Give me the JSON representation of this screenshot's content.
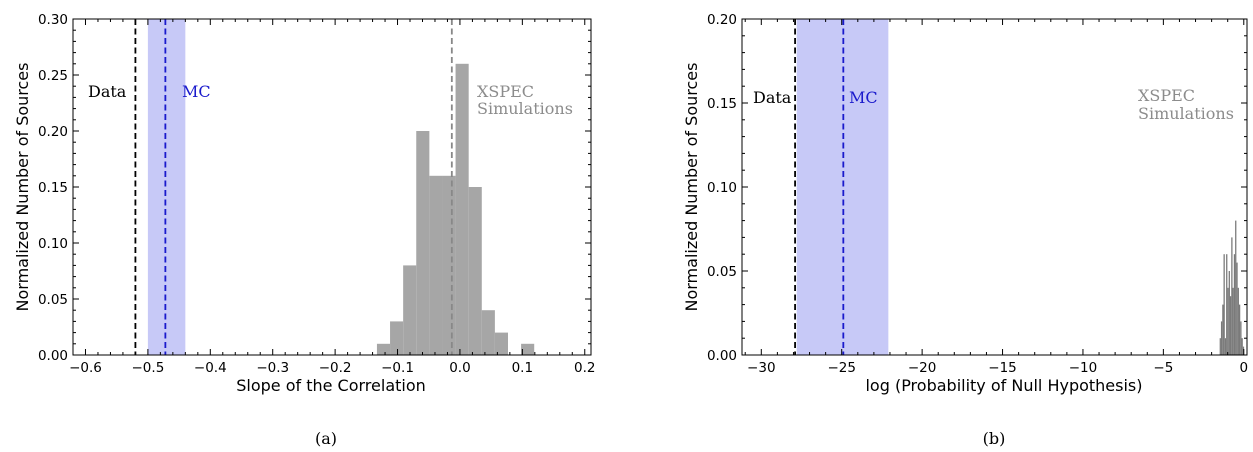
{
  "chart_data": [
    {
      "type": "bar",
      "xlabel": "Slope of the Correlation",
      "ylabel": "Normalized Number of Sources",
      "caption": "(a)",
      "xlim": [
        -0.62,
        0.21
      ],
      "ylim": [
        0,
        0.3
      ],
      "xticks": [
        -0.6,
        -0.5,
        -0.4,
        -0.3,
        -0.2,
        -0.1,
        0.0,
        0.1,
        0.2
      ],
      "xtick_labels": [
        "−0.6",
        "−0.5",
        "−0.4",
        "−0.3",
        "−0.2",
        "−0.1",
        "0.0",
        "0.1",
        "0.2"
      ],
      "yticks": [
        0.0,
        0.05,
        0.1,
        0.15,
        0.2,
        0.25,
        0.3
      ],
      "ytick_labels": [
        "0.00",
        "0.05",
        "0.10",
        "0.15",
        "0.20",
        "0.25",
        "0.30"
      ],
      "histogram": {
        "name": "XSPEC Simulations",
        "color": "#a6a6a6",
        "bin_width": 0.021,
        "bin_starts": [
          -0.133,
          -0.112,
          -0.091,
          -0.07,
          -0.049,
          -0.028,
          -0.007,
          0.014,
          0.035,
          0.056,
          0.077,
          0.098
        ],
        "values": [
          0.01,
          0.03,
          0.08,
          0.2,
          0.16,
          0.16,
          0.26,
          0.15,
          0.04,
          0.02,
          0.0,
          0.01
        ]
      },
      "lines": [
        {
          "label": "Data",
          "x": -0.52,
          "color": "#000000",
          "style": "dashed"
        },
        {
          "label": "MC",
          "x": -0.472,
          "color": "#1a1acc",
          "style": "dashed",
          "band": [
            -0.5,
            -0.44
          ],
          "band_color": "#c7c9f7"
        },
        {
          "label": "",
          "x": -0.013,
          "color": "#888888",
          "style": "dashed"
        }
      ],
      "annotations": [
        {
          "text": "Data",
          "color": "#000000"
        },
        {
          "text": "MC",
          "color": "#1a1acc"
        },
        {
          "text": "XSPEC",
          "color": "#8c8c8c"
        },
        {
          "text": "Simulations",
          "color": "#8c8c8c"
        }
      ]
    },
    {
      "type": "bar",
      "xlabel": "log (Probability of Null Hypothesis)",
      "ylabel": "Normalized Number of Sources",
      "caption": "(b)",
      "xlim": [
        -31.2,
        0.2
      ],
      "ylim": [
        0,
        0.2
      ],
      "xticks": [
        -30,
        -25,
        -20,
        -15,
        -10,
        -5,
        0
      ],
      "xtick_labels": [
        "−30",
        "−25",
        "−20",
        "−15",
        "−10",
        "−5",
        "0"
      ],
      "yticks": [
        0.0,
        0.05,
        0.1,
        0.15,
        0.2
      ],
      "ytick_labels": [
        "0.00",
        "0.05",
        "0.10",
        "0.15",
        "0.20"
      ],
      "histogram": {
        "name": "XSPEC Simulations",
        "color": "#7a7a7a",
        "bin_width": 0.08,
        "bin_starts": [
          -1.5,
          -1.42,
          -1.34,
          -1.26,
          -1.18,
          -1.1,
          -1.02,
          -0.94,
          -0.86,
          -0.78,
          -0.7,
          -0.62,
          -0.54,
          -0.46,
          -0.38,
          -0.3,
          -0.22,
          -0.14,
          -0.06
        ],
        "values": [
          0.01,
          0.02,
          0.03,
          0.06,
          0.01,
          0.06,
          0.04,
          0.05,
          0.035,
          0.07,
          0.04,
          0.06,
          0.08,
          0.055,
          0.04,
          0.03,
          0.02,
          0.01,
          0.005
        ]
      },
      "lines": [
        {
          "label": "Data",
          "x": -27.9,
          "color": "#000000",
          "style": "dashed"
        },
        {
          "label": "MC",
          "x": -24.9,
          "color": "#1a1acc",
          "style": "dashed",
          "band": [
            -27.8,
            -22.1
          ],
          "band_color": "#c7c9f7"
        }
      ],
      "annotations": [
        {
          "text": "Data",
          "color": "#000000"
        },
        {
          "text": "MC",
          "color": "#1a1acc"
        },
        {
          "text": "XSPEC",
          "color": "#8c8c8c"
        },
        {
          "text": "Simulations",
          "color": "#8c8c8c"
        }
      ]
    }
  ]
}
